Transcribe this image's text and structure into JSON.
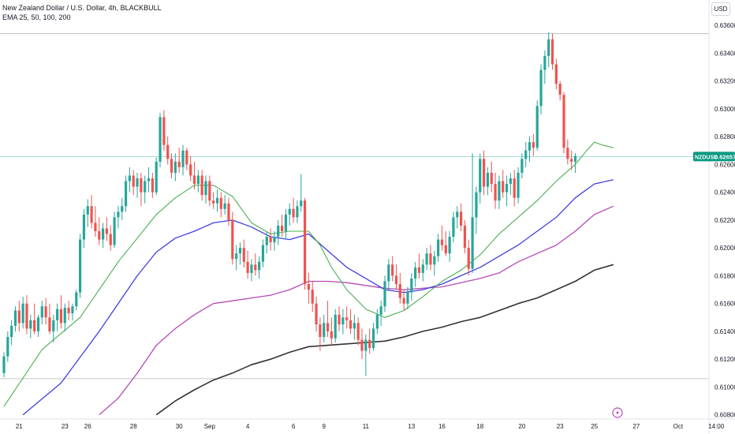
{
  "legend": {
    "title": "New Zealand Dollar / U.S. Dollar, 4h, BLACKBULL",
    "indicator": "EMA 25, 50, 100, 200"
  },
  "currency_button": "USD",
  "price_tag": {
    "symbol": "NZDUSD",
    "value": "0.62657",
    "price": 0.62657
  },
  "colors": {
    "up": "#26a69a",
    "down": "#ef5350",
    "ema25": "#4caf50",
    "ema50": "#3f3fe0",
    "ema100": "#b54ab8",
    "ema200": "#333333",
    "price_line": "#89d3c4",
    "tag_bg": "#089981"
  },
  "chart_data": {
    "type": "candlestick",
    "ylim": [
      0.6077,
      0.6368
    ],
    "y_ticks": [
      {
        "v": 0.636,
        "label": "0.63600"
      },
      {
        "v": 0.634,
        "label": "0.63400"
      },
      {
        "v": 0.632,
        "label": "0.63200"
      },
      {
        "v": 0.63,
        "label": "0.63000"
      },
      {
        "v": 0.628,
        "label": "0.62800"
      },
      {
        "v": 0.626,
        "label": "0.62600"
      },
      {
        "v": 0.624,
        "label": "0.62400"
      },
      {
        "v": 0.622,
        "label": "0.62200"
      },
      {
        "v": 0.62,
        "label": "0.62000"
      },
      {
        "v": 0.618,
        "label": "0.61800"
      },
      {
        "v": 0.616,
        "label": "0.61600"
      },
      {
        "v": 0.614,
        "label": "0.61400"
      },
      {
        "v": 0.612,
        "label": "0.61200"
      },
      {
        "v": 0.61,
        "label": "0.61000"
      },
      {
        "v": 0.608,
        "label": "0.60800"
      }
    ],
    "x_ticks": [
      {
        "i": 4,
        "label": "21"
      },
      {
        "i": 16,
        "label": "23"
      },
      {
        "i": 22,
        "label": "26"
      },
      {
        "i": 34,
        "label": "28"
      },
      {
        "i": 46,
        "label": "30"
      },
      {
        "i": 54,
        "label": "Sep"
      },
      {
        "i": 64,
        "label": "4"
      },
      {
        "i": 76,
        "label": "6"
      },
      {
        "i": 84,
        "label": "9"
      },
      {
        "i": 95,
        "label": "11"
      },
      {
        "i": 107,
        "label": "13"
      },
      {
        "i": 115,
        "label": "16"
      },
      {
        "i": 125,
        "label": "18"
      },
      {
        "i": 136,
        "label": "20"
      },
      {
        "i": 146,
        "label": "23"
      },
      {
        "i": 155,
        "label": "25"
      },
      {
        "i": 166,
        "label": "27"
      },
      {
        "i": 177,
        "label": "Oct"
      },
      {
        "i": 187,
        "label": "14:00"
      }
    ],
    "hlines": [
      0.6354,
      0.6106
    ],
    "candles": [
      [
        0.611,
        0.6125,
        0.6107,
        0.6122
      ],
      [
        0.6122,
        0.614,
        0.6118,
        0.6136
      ],
      [
        0.6136,
        0.6148,
        0.613,
        0.6144
      ],
      [
        0.6144,
        0.6158,
        0.614,
        0.6155
      ],
      [
        0.6155,
        0.6162,
        0.614,
        0.6146
      ],
      [
        0.6146,
        0.6165,
        0.6142,
        0.616
      ],
      [
        0.616,
        0.6166,
        0.6138,
        0.6142
      ],
      [
        0.6142,
        0.6152,
        0.6135,
        0.6148
      ],
      [
        0.6148,
        0.616,
        0.6138,
        0.614
      ],
      [
        0.614,
        0.6152,
        0.6136,
        0.615
      ],
      [
        0.615,
        0.6162,
        0.6145,
        0.6158
      ],
      [
        0.6158,
        0.6164,
        0.6145,
        0.615
      ],
      [
        0.615,
        0.616,
        0.6138,
        0.614
      ],
      [
        0.614,
        0.6152,
        0.6132,
        0.6148
      ],
      [
        0.6148,
        0.616,
        0.614,
        0.6156
      ],
      [
        0.6156,
        0.6166,
        0.6142,
        0.6146
      ],
      [
        0.6146,
        0.616,
        0.614,
        0.6157
      ],
      [
        0.6157,
        0.6162,
        0.6148,
        0.6153
      ],
      [
        0.6153,
        0.616,
        0.6148,
        0.6158
      ],
      [
        0.6158,
        0.617,
        0.6155,
        0.6168
      ],
      [
        0.6168,
        0.621,
        0.6164,
        0.6206
      ],
      [
        0.6206,
        0.6228,
        0.62,
        0.6224
      ],
      [
        0.6224,
        0.6235,
        0.6215,
        0.623
      ],
      [
        0.623,
        0.6238,
        0.6214,
        0.6218
      ],
      [
        0.6218,
        0.623,
        0.6208,
        0.6212
      ],
      [
        0.6212,
        0.6222,
        0.6202,
        0.6206
      ],
      [
        0.6206,
        0.6218,
        0.62,
        0.6214
      ],
      [
        0.6214,
        0.6222,
        0.6205,
        0.621
      ],
      [
        0.621,
        0.6216,
        0.6198,
        0.6202
      ],
      [
        0.6202,
        0.6226,
        0.62,
        0.6222
      ],
      [
        0.6222,
        0.623,
        0.6214,
        0.6226
      ],
      [
        0.6226,
        0.6236,
        0.622,
        0.623
      ],
      [
        0.623,
        0.6252,
        0.6226,
        0.6248
      ],
      [
        0.6248,
        0.6258,
        0.624,
        0.6252
      ],
      [
        0.6252,
        0.6256,
        0.6238,
        0.6244
      ],
      [
        0.6244,
        0.6254,
        0.6236,
        0.625
      ],
      [
        0.625,
        0.6254,
        0.623,
        0.624
      ],
      [
        0.624,
        0.6252,
        0.6232,
        0.6248
      ],
      [
        0.6248,
        0.6258,
        0.624,
        0.625
      ],
      [
        0.625,
        0.6254,
        0.6236,
        0.624
      ],
      [
        0.624,
        0.6265,
        0.6238,
        0.6262
      ],
      [
        0.6262,
        0.6297,
        0.6258,
        0.6294
      ],
      [
        0.6294,
        0.6299,
        0.627,
        0.6274
      ],
      [
        0.6274,
        0.628,
        0.626,
        0.6264
      ],
      [
        0.6264,
        0.6268,
        0.625,
        0.6254
      ],
      [
        0.6254,
        0.6268,
        0.6248,
        0.6262
      ],
      [
        0.6262,
        0.6272,
        0.6254,
        0.6258
      ],
      [
        0.6258,
        0.6274,
        0.6252,
        0.627
      ],
      [
        0.627,
        0.6272,
        0.6256,
        0.626
      ],
      [
        0.626,
        0.6266,
        0.6248,
        0.6252
      ],
      [
        0.6252,
        0.6262,
        0.6242,
        0.6246
      ],
      [
        0.6246,
        0.6256,
        0.624,
        0.6252
      ],
      [
        0.6252,
        0.6256,
        0.6234,
        0.6238
      ],
      [
        0.6238,
        0.6252,
        0.6232,
        0.6248
      ],
      [
        0.6248,
        0.6252,
        0.623,
        0.6234
      ],
      [
        0.6234,
        0.624,
        0.6228,
        0.6232
      ],
      [
        0.6232,
        0.6242,
        0.6226,
        0.6236
      ],
      [
        0.6236,
        0.624,
        0.6222,
        0.6228
      ],
      [
        0.6228,
        0.6238,
        0.6224,
        0.6232
      ],
      [
        0.6232,
        0.6236,
        0.6216,
        0.622
      ],
      [
        0.622,
        0.6226,
        0.6188,
        0.6192
      ],
      [
        0.6192,
        0.6202,
        0.6184,
        0.6196
      ],
      [
        0.6196,
        0.6204,
        0.6188,
        0.62
      ],
      [
        0.62,
        0.6206,
        0.6186,
        0.619
      ],
      [
        0.619,
        0.6198,
        0.6178,
        0.6182
      ],
      [
        0.6182,
        0.6192,
        0.6176,
        0.6188
      ],
      [
        0.6188,
        0.6196,
        0.618,
        0.6184
      ],
      [
        0.6184,
        0.6194,
        0.6178,
        0.619
      ],
      [
        0.619,
        0.6206,
        0.6186,
        0.6202
      ],
      [
        0.6202,
        0.6212,
        0.6196,
        0.6208
      ],
      [
        0.6208,
        0.6214,
        0.6198,
        0.6204
      ],
      [
        0.6204,
        0.6212,
        0.6198,
        0.6208
      ],
      [
        0.6208,
        0.622,
        0.6202,
        0.6216
      ],
      [
        0.6216,
        0.6224,
        0.6208,
        0.6212
      ],
      [
        0.6212,
        0.6228,
        0.6206,
        0.6224
      ],
      [
        0.6224,
        0.6232,
        0.6216,
        0.6228
      ],
      [
        0.6228,
        0.6236,
        0.6218,
        0.6222
      ],
      [
        0.6222,
        0.6234,
        0.6218,
        0.623
      ],
      [
        0.623,
        0.6253,
        0.6226,
        0.6234
      ],
      [
        0.6234,
        0.6236,
        0.617,
        0.6174
      ],
      [
        0.6174,
        0.6182,
        0.616,
        0.617
      ],
      [
        0.617,
        0.6176,
        0.6154,
        0.616
      ],
      [
        0.616,
        0.6165,
        0.614,
        0.6145
      ],
      [
        0.6145,
        0.615,
        0.6126,
        0.6136
      ],
      [
        0.6136,
        0.6152,
        0.6132,
        0.6146
      ],
      [
        0.6146,
        0.6162,
        0.6136,
        0.614
      ],
      [
        0.614,
        0.615,
        0.613,
        0.6135
      ],
      [
        0.6135,
        0.6156,
        0.6132,
        0.6152
      ],
      [
        0.6152,
        0.6158,
        0.614,
        0.6145
      ],
      [
        0.6145,
        0.6156,
        0.6138,
        0.615
      ],
      [
        0.615,
        0.6158,
        0.6142,
        0.6148
      ],
      [
        0.6148,
        0.6156,
        0.6138,
        0.6142
      ],
      [
        0.6142,
        0.6152,
        0.6134,
        0.6146
      ],
      [
        0.6146,
        0.615,
        0.613,
        0.6134
      ],
      [
        0.6134,
        0.6142,
        0.612,
        0.6126
      ],
      [
        0.6126,
        0.6138,
        0.6108,
        0.6134
      ],
      [
        0.6134,
        0.6142,
        0.6124,
        0.6128
      ],
      [
        0.6128,
        0.6146,
        0.6126,
        0.6142
      ],
      [
        0.6142,
        0.6156,
        0.6138,
        0.6152
      ],
      [
        0.6152,
        0.6162,
        0.6144,
        0.6158
      ],
      [
        0.6158,
        0.618,
        0.6154,
        0.6176
      ],
      [
        0.6176,
        0.6192,
        0.617,
        0.6188
      ],
      [
        0.6188,
        0.6194,
        0.6176,
        0.618
      ],
      [
        0.618,
        0.6188,
        0.617,
        0.6174
      ],
      [
        0.6174,
        0.6182,
        0.616,
        0.6164
      ],
      [
        0.6164,
        0.617,
        0.6155,
        0.616
      ],
      [
        0.616,
        0.6172,
        0.6156,
        0.6168
      ],
      [
        0.6168,
        0.6182,
        0.6162,
        0.6178
      ],
      [
        0.6178,
        0.619,
        0.6172,
        0.6186
      ],
      [
        0.6186,
        0.6196,
        0.6178,
        0.6182
      ],
      [
        0.6182,
        0.6192,
        0.6176,
        0.6188
      ],
      [
        0.6188,
        0.62,
        0.6184,
        0.6196
      ],
      [
        0.6196,
        0.6202,
        0.6184,
        0.6188
      ],
      [
        0.6188,
        0.6198,
        0.618,
        0.6194
      ],
      [
        0.6194,
        0.621,
        0.619,
        0.6206
      ],
      [
        0.6206,
        0.6216,
        0.6198,
        0.6202
      ],
      [
        0.6202,
        0.6212,
        0.6194,
        0.6196
      ],
      [
        0.6196,
        0.6212,
        0.619,
        0.6208
      ],
      [
        0.6208,
        0.6226,
        0.6204,
        0.6222
      ],
      [
        0.6222,
        0.623,
        0.6214,
        0.6226
      ],
      [
        0.6226,
        0.6232,
        0.6212,
        0.6216
      ],
      [
        0.6216,
        0.622,
        0.6196,
        0.62
      ],
      [
        0.62,
        0.6206,
        0.618,
        0.6185
      ],
      [
        0.6185,
        0.6268,
        0.6182,
        0.6222
      ],
      [
        0.6222,
        0.6244,
        0.621,
        0.624
      ],
      [
        0.624,
        0.6268,
        0.6232,
        0.6264
      ],
      [
        0.6264,
        0.627,
        0.6238,
        0.6244
      ],
      [
        0.6244,
        0.6258,
        0.6238,
        0.6254
      ],
      [
        0.6254,
        0.6262,
        0.624,
        0.6246
      ],
      [
        0.6246,
        0.6254,
        0.6228,
        0.6234
      ],
      [
        0.6234,
        0.6252,
        0.6228,
        0.6248
      ],
      [
        0.6248,
        0.6256,
        0.6236,
        0.624
      ],
      [
        0.624,
        0.6252,
        0.623,
        0.6246
      ],
      [
        0.6246,
        0.6254,
        0.6238,
        0.625
      ],
      [
        0.625,
        0.6256,
        0.623,
        0.6236
      ],
      [
        0.6236,
        0.6258,
        0.6232,
        0.6254
      ],
      [
        0.6254,
        0.6268,
        0.625,
        0.6264
      ],
      [
        0.6264,
        0.6276,
        0.6258,
        0.627
      ],
      [
        0.627,
        0.628,
        0.6262,
        0.6276
      ],
      [
        0.6276,
        0.6282,
        0.6266,
        0.6272
      ],
      [
        0.6272,
        0.6306,
        0.627,
        0.6302
      ],
      [
        0.6302,
        0.6332,
        0.6296,
        0.6328
      ],
      [
        0.6328,
        0.6342,
        0.6318,
        0.6338
      ],
      [
        0.6338,
        0.6355,
        0.633,
        0.635
      ],
      [
        0.635,
        0.6354,
        0.6328,
        0.6332
      ],
      [
        0.6332,
        0.6336,
        0.6314,
        0.6318
      ],
      [
        0.6318,
        0.632,
        0.6306,
        0.631
      ],
      [
        0.631,
        0.6312,
        0.6268,
        0.6272
      ],
      [
        0.6272,
        0.6278,
        0.626,
        0.6264
      ],
      [
        0.6264,
        0.627,
        0.6256,
        0.6262
      ],
      [
        0.6262,
        0.6268,
        0.6254,
        0.6266
      ]
    ],
    "ema25": [
      [
        0,
        0.6086
      ],
      [
        10,
        0.6127
      ],
      [
        20,
        0.615
      ],
      [
        30,
        0.619
      ],
      [
        40,
        0.6224
      ],
      [
        45,
        0.6236
      ],
      [
        50,
        0.6245
      ],
      [
        55,
        0.6245
      ],
      [
        60,
        0.6237
      ],
      [
        65,
        0.6218
      ],
      [
        70,
        0.621
      ],
      [
        75,
        0.6212
      ],
      [
        80,
        0.6212
      ],
      [
        83,
        0.6202
      ],
      [
        86,
        0.6186
      ],
      [
        90,
        0.617
      ],
      [
        95,
        0.6156
      ],
      [
        100,
        0.615
      ],
      [
        105,
        0.6155
      ],
      [
        110,
        0.6165
      ],
      [
        115,
        0.6176
      ],
      [
        120,
        0.6184
      ],
      [
        125,
        0.6195
      ],
      [
        130,
        0.621
      ],
      [
        135,
        0.6222
      ],
      [
        140,
        0.6234
      ],
      [
        145,
        0.6248
      ],
      [
        150,
        0.626
      ],
      [
        153,
        0.627
      ],
      [
        155,
        0.6276
      ],
      [
        157,
        0.6274
      ],
      [
        160,
        0.6272
      ]
    ],
    "ema50": [
      [
        5,
        0.608
      ],
      [
        15,
        0.6103
      ],
      [
        25,
        0.614
      ],
      [
        30,
        0.616
      ],
      [
        35,
        0.618
      ],
      [
        40,
        0.6197
      ],
      [
        45,
        0.6207
      ],
      [
        50,
        0.6212
      ],
      [
        55,
        0.6218
      ],
      [
        60,
        0.622
      ],
      [
        65,
        0.6215
      ],
      [
        70,
        0.6208
      ],
      [
        75,
        0.6206
      ],
      [
        80,
        0.621
      ],
      [
        85,
        0.6198
      ],
      [
        90,
        0.6186
      ],
      [
        95,
        0.6178
      ],
      [
        100,
        0.617
      ],
      [
        105,
        0.6168
      ],
      [
        110,
        0.617
      ],
      [
        115,
        0.6174
      ],
      [
        120,
        0.618
      ],
      [
        125,
        0.6186
      ],
      [
        130,
        0.6194
      ],
      [
        135,
        0.6202
      ],
      [
        140,
        0.6212
      ],
      [
        145,
        0.6222
      ],
      [
        150,
        0.6236
      ],
      [
        155,
        0.6246
      ],
      [
        160,
        0.6249
      ]
    ],
    "ema100": [
      [
        25,
        0.608
      ],
      [
        30,
        0.6092
      ],
      [
        35,
        0.611
      ],
      [
        40,
        0.613
      ],
      [
        45,
        0.6142
      ],
      [
        50,
        0.6152
      ],
      [
        55,
        0.616
      ],
      [
        60,
        0.6162
      ],
      [
        65,
        0.6164
      ],
      [
        70,
        0.6166
      ],
      [
        75,
        0.617
      ],
      [
        80,
        0.6176
      ],
      [
        85,
        0.6176
      ],
      [
        90,
        0.6175
      ],
      [
        95,
        0.6173
      ],
      [
        100,
        0.6171
      ],
      [
        105,
        0.617
      ],
      [
        110,
        0.6171
      ],
      [
        115,
        0.6172
      ],
      [
        120,
        0.6175
      ],
      [
        125,
        0.6178
      ],
      [
        130,
        0.6182
      ],
      [
        135,
        0.619
      ],
      [
        140,
        0.6196
      ],
      [
        145,
        0.6202
      ],
      [
        150,
        0.6212
      ],
      [
        155,
        0.6224
      ],
      [
        160,
        0.623
      ]
    ],
    "ema200": [
      [
        40,
        0.608
      ],
      [
        45,
        0.609
      ],
      [
        50,
        0.6098
      ],
      [
        55,
        0.6105
      ],
      [
        60,
        0.611
      ],
      [
        65,
        0.6116
      ],
      [
        70,
        0.612
      ],
      [
        75,
        0.6125
      ],
      [
        80,
        0.6129
      ],
      [
        85,
        0.613
      ],
      [
        90,
        0.6131
      ],
      [
        95,
        0.6132
      ],
      [
        100,
        0.6133
      ],
      [
        105,
        0.6136
      ],
      [
        110,
        0.614
      ],
      [
        115,
        0.6143
      ],
      [
        120,
        0.6147
      ],
      [
        125,
        0.615
      ],
      [
        130,
        0.6155
      ],
      [
        135,
        0.616
      ],
      [
        140,
        0.6164
      ],
      [
        145,
        0.617
      ],
      [
        150,
        0.6176
      ],
      [
        155,
        0.6184
      ],
      [
        160,
        0.6188
      ]
    ]
  }
}
